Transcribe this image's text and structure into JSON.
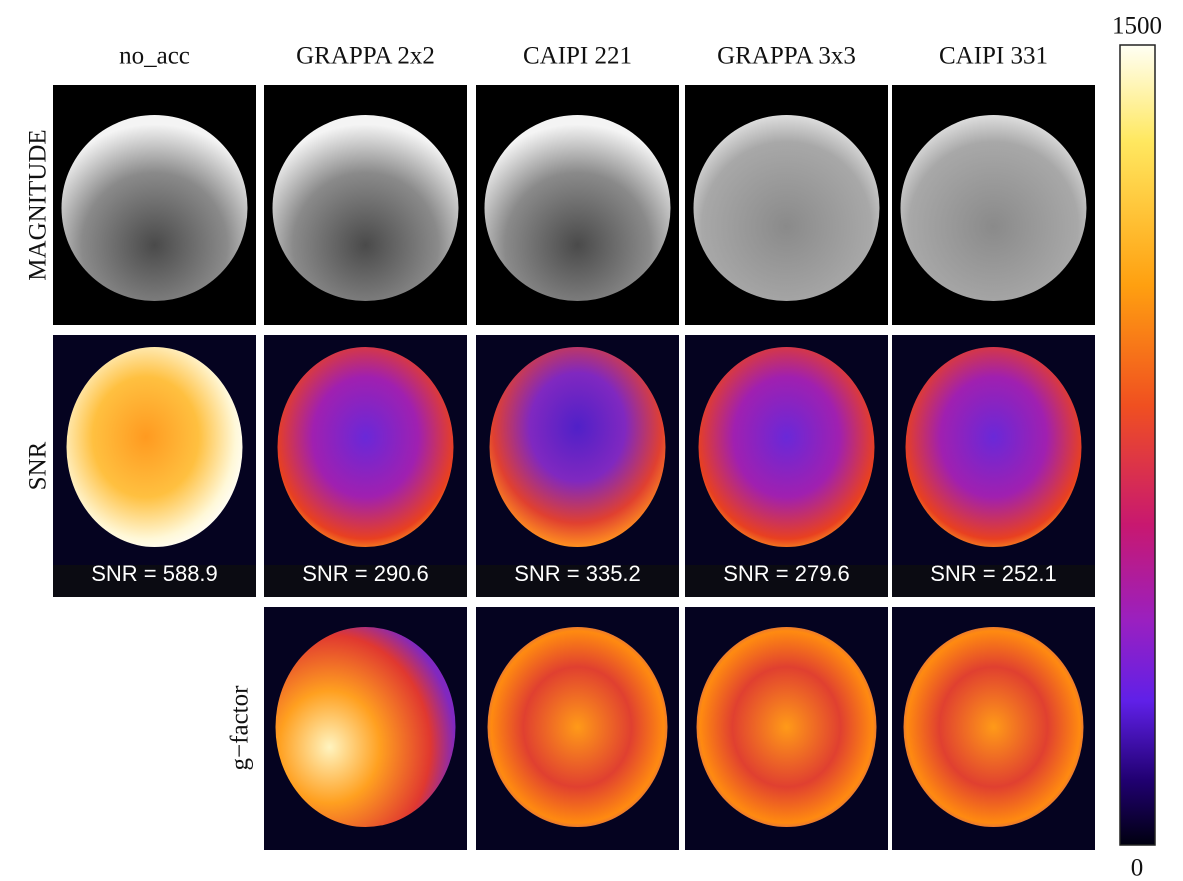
{
  "columns": [
    "no_acc",
    "GRAPPA 2x2",
    "CAIPI 221",
    "GRAPPA 3x3",
    "CAIPI 331"
  ],
  "rows": [
    "MAGNITUDE",
    "SNR",
    "g−factor"
  ],
  "snr_labels": [
    "SNR = 588.9",
    "SNR = 290.6",
    "SNR = 335.2",
    "SNR = 279.6",
    "SNR = 252.1"
  ],
  "colorbar": {
    "ticks": [
      0,
      1500
    ]
  }
}
